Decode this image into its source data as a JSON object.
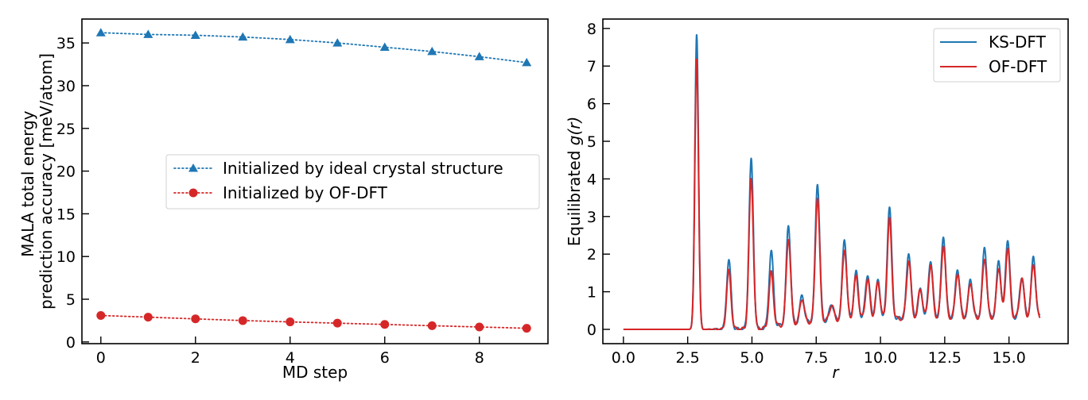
{
  "chart_data": [
    {
      "type": "line",
      "xlabel": "MD step",
      "ylabel_lines": [
        "MALA total energy",
        "prediction accuracy [meV/atom]"
      ],
      "xlim": [
        -0.4,
        9.45
      ],
      "ylim": [
        -0.2,
        37.8
      ],
      "xticks": [
        0,
        2,
        4,
        6,
        8
      ],
      "yticks": [
        0,
        5,
        10,
        15,
        20,
        25,
        30,
        35
      ],
      "legend_position": "center-right",
      "x": [
        0,
        1,
        2,
        3,
        4,
        5,
        6,
        7,
        8,
        9
      ],
      "series": [
        {
          "name": "Initialized by ideal crystal structure",
          "color": "#1f77b4",
          "marker": "triangle",
          "line_style": "dotted",
          "values": [
            36.2,
            36.0,
            35.9,
            35.7,
            35.4,
            35.0,
            34.5,
            34.0,
            33.4,
            32.7
          ]
        },
        {
          "name": "Initialized by OF-DFT",
          "color": "#d62728",
          "marker": "circle",
          "line_style": "dotted",
          "values": [
            3.1,
            2.9,
            2.7,
            2.5,
            2.35,
            2.2,
            2.05,
            1.9,
            1.75,
            1.6
          ]
        }
      ]
    },
    {
      "type": "line",
      "xlabel": "r",
      "ylabel_prefix": "Equilibrated ",
      "ylabel_math": "g(r)",
      "xlim": [
        -0.8,
        17.3
      ],
      "ylim": [
        -0.38,
        8.25
      ],
      "xticks": [
        0.0,
        2.5,
        5.0,
        7.5,
        10.0,
        12.5,
        15.0
      ],
      "xtick_labels": [
        "0.0",
        "2.5",
        "5.0",
        "7.5",
        "10.0",
        "12.5",
        "15.0"
      ],
      "yticks": [
        0,
        1,
        2,
        3,
        4,
        5,
        6,
        7,
        8
      ],
      "legend_position": "top-right",
      "x_range": [
        0,
        16.2
      ],
      "series": [
        {
          "name": "KS-DFT",
          "color": "#1f77b4",
          "peaks": [
            [
              2.85,
              7.85
            ],
            [
              4.1,
              1.85
            ],
            [
              4.97,
              4.5
            ],
            [
              5.75,
              2.02
            ],
            [
              6.42,
              2.62
            ],
            [
              6.95,
              0.72
            ],
            [
              7.55,
              3.68
            ],
            [
              8.1,
              0.45
            ],
            [
              8.6,
              2.12
            ],
            [
              9.05,
              1.27
            ],
            [
              9.5,
              1.2
            ],
            [
              9.9,
              1.0
            ],
            [
              10.35,
              3.0
            ],
            [
              11.1,
              1.75
            ],
            [
              11.55,
              0.75
            ],
            [
              11.95,
              1.55
            ],
            [
              12.45,
              2.17
            ],
            [
              13.0,
              1.3
            ],
            [
              13.5,
              1.0
            ],
            [
              14.05,
              1.85
            ],
            [
              14.6,
              1.5
            ],
            [
              14.95,
              2.1
            ],
            [
              15.5,
              1.1
            ],
            [
              15.95,
              1.6
            ]
          ]
        },
        {
          "name": "OF-DFT",
          "color": "#d62728",
          "peaks": [
            [
              2.85,
              7.2
            ],
            [
              4.1,
              1.55
            ],
            [
              4.97,
              4.0
            ],
            [
              5.75,
              1.45
            ],
            [
              6.42,
              2.3
            ],
            [
              6.95,
              0.65
            ],
            [
              7.55,
              3.3
            ],
            [
              8.1,
              0.42
            ],
            [
              8.6,
              1.9
            ],
            [
              9.05,
              1.15
            ],
            [
              9.5,
              1.05
            ],
            [
              9.9,
              0.98
            ],
            [
              10.35,
              2.65
            ],
            [
              11.1,
              1.55
            ],
            [
              11.55,
              0.78
            ],
            [
              11.95,
              1.4
            ],
            [
              12.45,
              1.95
            ],
            [
              13.0,
              1.2
            ],
            [
              13.5,
              0.95
            ],
            [
              14.05,
              1.6
            ],
            [
              14.6,
              1.35
            ],
            [
              14.95,
              1.85
            ],
            [
              15.5,
              1.05
            ],
            [
              15.95,
              1.45
            ]
          ]
        }
      ]
    }
  ]
}
